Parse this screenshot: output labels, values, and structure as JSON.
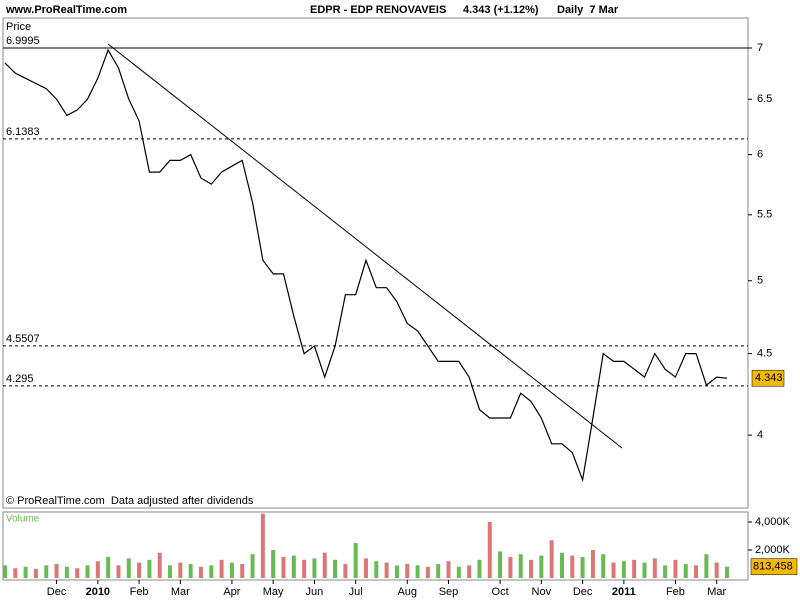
{
  "chart_data": [
    {
      "type": "line",
      "source": "www.ProRealTime.com",
      "title": "EDPR - EDP RENOVAVEIS",
      "quote": "4.343 (+1.12%)",
      "period": "Daily  7 Mar",
      "ylabel": "Price",
      "footer": "© ProRealTime.com  Data adjusted after dividends",
      "log_scale": true,
      "ylim": [
        3.6,
        7.31
      ],
      "yticks": [
        4,
        4.5,
        5,
        5.5,
        6,
        6.5,
        7
      ],
      "levels": [
        6.9995,
        6.1383,
        4.5507,
        4.295
      ],
      "color": "#000000",
      "tag_color": "#f5b800",
      "categories": [
        null,
        null,
        null,
        null,
        null,
        "Dec",
        null,
        null,
        null,
        "2010",
        null,
        null,
        null,
        "Feb",
        null,
        null,
        null,
        "Mar",
        null,
        null,
        null,
        null,
        "Apr",
        null,
        null,
        null,
        "May",
        null,
        null,
        null,
        "Jun",
        null,
        null,
        null,
        "Jul",
        null,
        null,
        null,
        null,
        "Aug",
        null,
        null,
        null,
        "Sep",
        null,
        null,
        null,
        null,
        "Oct",
        null,
        null,
        null,
        "Nov",
        null,
        null,
        null,
        "Dec",
        null,
        null,
        null,
        "2011",
        null,
        null,
        null,
        null,
        "Feb",
        null,
        null,
        null,
        "Mar",
        null
      ],
      "values": [
        6.85,
        6.75,
        6.7,
        6.65,
        6.6,
        6.5,
        6.35,
        6.4,
        6.5,
        6.7,
        6.98,
        6.8,
        6.5,
        6.3,
        5.85,
        5.85,
        5.95,
        5.95,
        6.0,
        5.8,
        5.75,
        5.85,
        5.9,
        5.95,
        5.6,
        5.15,
        5.05,
        5.05,
        4.75,
        4.5,
        4.55,
        4.35,
        4.55,
        4.9,
        4.9,
        5.15,
        4.95,
        4.95,
        4.85,
        4.7,
        4.65,
        4.55,
        4.45,
        4.45,
        4.45,
        4.35,
        4.15,
        4.1,
        4.1,
        4.1,
        4.25,
        4.2,
        4.1,
        3.95,
        3.95,
        3.9,
        3.75,
        4.1,
        4.5,
        4.45,
        4.45,
        4.4,
        4.35,
        4.5,
        4.4,
        4.35,
        4.5,
        4.5,
        4.3,
        4.35,
        4.343
      ]
    },
    {
      "type": "bar",
      "ylabel": "Volume",
      "color": "#66bb55",
      "tag_color": "#f5b800",
      "ylim": [
        -143000,
        4643000
      ],
      "yticks": [
        {
          "value": 2000000,
          "label": "2,000K"
        },
        {
          "value": 4000000,
          "label": "4,000K"
        }
      ],
      "values": [
        900000,
        700000,
        800000,
        650000,
        900000,
        1000000,
        800000,
        700000,
        900000,
        1200000,
        1500000,
        900000,
        1400000,
        1100000,
        1300000,
        1800000,
        900000,
        1100000,
        1000000,
        800000,
        900000,
        1300000,
        1100000,
        1000000,
        1700000,
        4600000,
        2000000,
        1500000,
        1600000,
        1300000,
        1400000,
        1800000,
        1300000,
        1000000,
        2500000,
        1400000,
        1200000,
        1100000,
        900000,
        1000000,
        900000,
        800000,
        1000000,
        1200000,
        800000,
        900000,
        1300000,
        4000000,
        1900000,
        1500000,
        1700000,
        1300000,
        1600000,
        2700000,
        1800000,
        1600000,
        1500000,
        2000000,
        1700000,
        1100000,
        1200000,
        1300000,
        1100000,
        1400000,
        900000,
        1300000,
        1000000,
        900000,
        1700000,
        1100000,
        813458
      ],
      "value_labels": [
        null,
        null,
        null,
        null,
        null,
        null,
        null,
        null,
        null,
        null,
        null,
        null,
        null,
        null,
        null,
        null,
        null,
        null,
        null,
        null,
        null,
        null,
        null,
        null,
        null,
        null,
        null,
        null,
        null,
        null,
        null,
        null,
        null,
        null,
        null,
        null,
        null,
        null,
        null,
        null,
        null,
        null,
        null,
        null,
        null,
        null,
        null,
        null,
        null,
        null,
        null,
        null,
        null,
        null,
        null,
        null,
        null,
        null,
        null,
        null,
        null,
        null,
        null,
        null,
        null,
        null,
        null,
        null,
        null,
        null,
        "813,458"
      ]
    }
  ]
}
